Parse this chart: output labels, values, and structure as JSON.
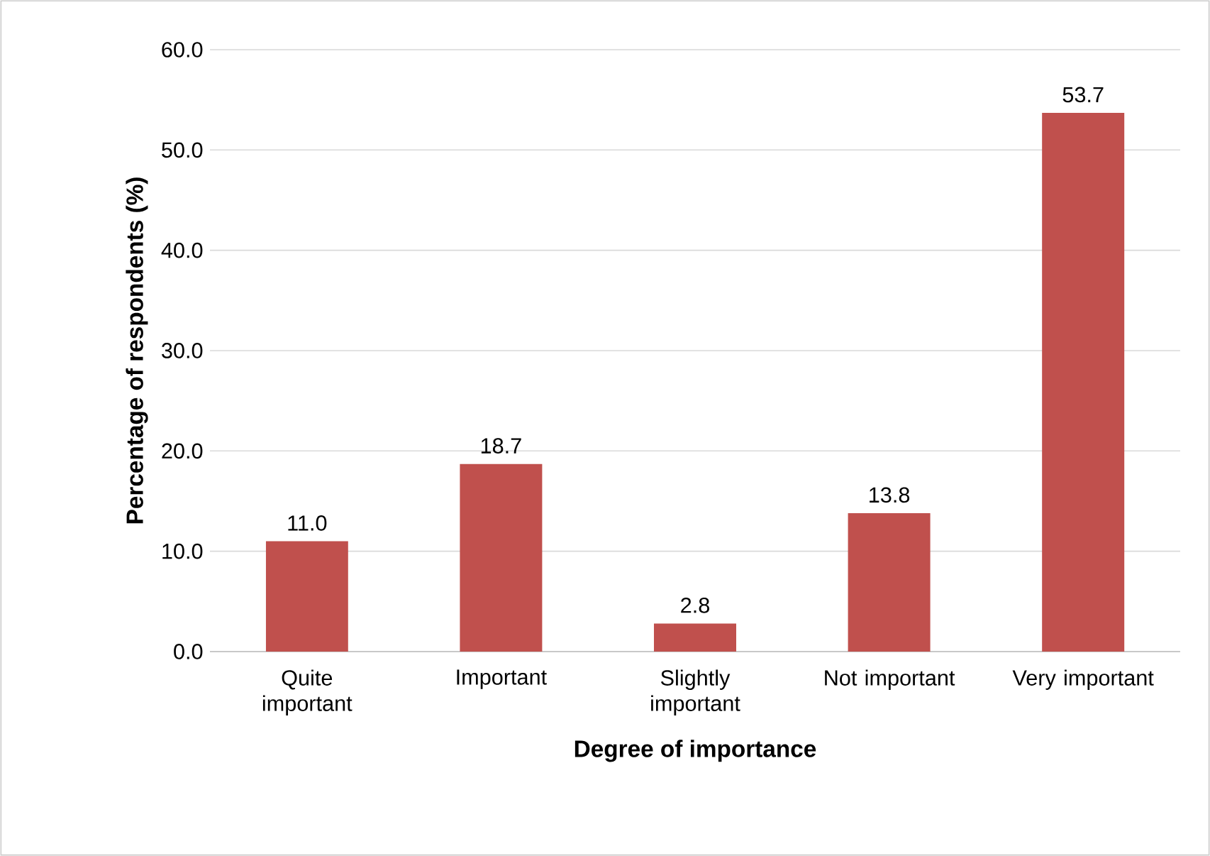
{
  "chart_data": {
    "type": "bar",
    "xlabel": "Degree of importance",
    "ylabel": "Percentage of respondents (%)",
    "categories": [
      "Quite important",
      "Important",
      "Slightly important",
      "Not important",
      "Very important"
    ],
    "values": [
      11.0,
      18.7,
      2.8,
      13.8,
      53.7
    ],
    "value_labels": [
      "11.0",
      "18.7",
      "2.8",
      "13.8",
      "53.7"
    ],
    "color": "#c0504d",
    "ylim": [
      0,
      60
    ],
    "yticks": [
      {
        "value": 0,
        "label": "0.0"
      },
      {
        "value": 10,
        "label": "10.0"
      },
      {
        "value": 20,
        "label": "20.0"
      },
      {
        "value": 30,
        "label": "30.0"
      },
      {
        "value": 40,
        "label": "40.0"
      },
      {
        "value": 50,
        "label": "50.0"
      },
      {
        "value": 60,
        "label": "60.0"
      }
    ],
    "grid": "y"
  }
}
